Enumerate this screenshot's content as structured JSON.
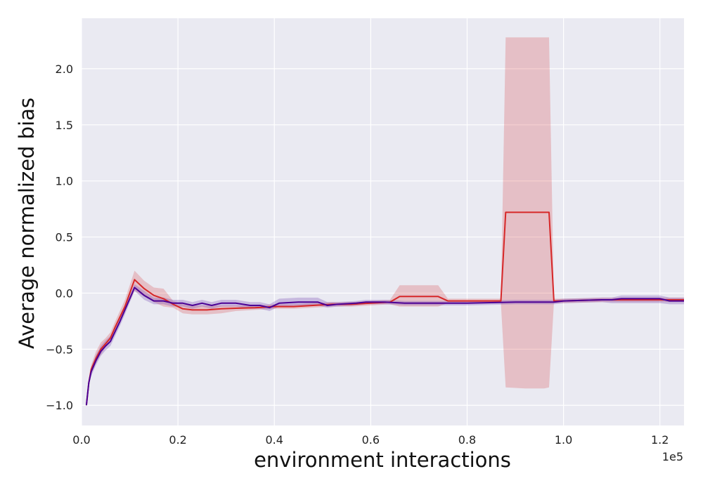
{
  "chart_data": {
    "type": "line",
    "title": "",
    "xlabel": "environment interactions",
    "ylabel": "Average normalized bias",
    "x_offset_label": "1e5",
    "xlim": [
      0,
      1.25
    ],
    "ylim": [
      -1.18,
      2.45
    ],
    "x_ticks": [
      0.0,
      0.2,
      0.4,
      0.6,
      0.8,
      1.0,
      1.2
    ],
    "x_tick_labels": [
      "0.0",
      "0.2",
      "0.4",
      "0.6",
      "0.8",
      "1.0",
      "1.2"
    ],
    "y_ticks": [
      -1.0,
      -0.5,
      0.0,
      0.5,
      1.0,
      1.5,
      2.0
    ],
    "y_tick_labels": [
      "−1.0",
      "−0.5",
      "0.0",
      "0.5",
      "1.0",
      "1.5",
      "2.0"
    ],
    "grid": true,
    "legend": "none",
    "background": "#eaeaf2",
    "series": [
      {
        "color": "#d62728",
        "band_color": "#d62728",
        "band_opacity": 0.22,
        "points": [
          [
            0.01,
            -1.0,
            -1.0,
            -1.0
          ],
          [
            0.015,
            -0.8,
            -0.82,
            -0.78
          ],
          [
            0.02,
            -0.68,
            -0.72,
            -0.64
          ],
          [
            0.03,
            -0.58,
            -0.62,
            -0.52
          ],
          [
            0.04,
            -0.5,
            -0.55,
            -0.44
          ],
          [
            0.05,
            -0.45,
            -0.48,
            -0.4
          ],
          [
            0.06,
            -0.4,
            -0.44,
            -0.35
          ],
          [
            0.07,
            -0.3,
            -0.34,
            -0.25
          ],
          [
            0.09,
            -0.12,
            -0.16,
            -0.06
          ],
          [
            0.11,
            0.12,
            0.02,
            0.2
          ],
          [
            0.13,
            0.04,
            -0.03,
            0.11
          ],
          [
            0.15,
            -0.02,
            -0.08,
            0.05
          ],
          [
            0.17,
            -0.05,
            -0.12,
            0.04
          ],
          [
            0.19,
            -0.1,
            -0.13,
            -0.07
          ],
          [
            0.21,
            -0.14,
            -0.18,
            -0.1
          ],
          [
            0.23,
            -0.15,
            -0.19,
            -0.11
          ],
          [
            0.26,
            -0.15,
            -0.19,
            -0.11
          ],
          [
            0.29,
            -0.14,
            -0.18,
            -0.11
          ],
          [
            0.32,
            -0.135,
            -0.16,
            -0.11
          ],
          [
            0.36,
            -0.13,
            -0.15,
            -0.11
          ],
          [
            0.4,
            -0.12,
            -0.14,
            -0.1
          ],
          [
            0.44,
            -0.12,
            -0.14,
            -0.1
          ],
          [
            0.48,
            -0.11,
            -0.13,
            -0.09
          ],
          [
            0.52,
            -0.1,
            -0.12,
            -0.08
          ],
          [
            0.56,
            -0.1,
            -0.12,
            -0.08
          ],
          [
            0.6,
            -0.09,
            -0.11,
            -0.07
          ],
          [
            0.64,
            -0.08,
            -0.1,
            -0.06
          ],
          [
            0.66,
            -0.03,
            -0.12,
            0.07
          ],
          [
            0.7,
            -0.03,
            -0.12,
            0.07
          ],
          [
            0.74,
            -0.03,
            -0.12,
            0.07
          ],
          [
            0.76,
            -0.07,
            -0.09,
            -0.05
          ],
          [
            0.8,
            -0.07,
            -0.09,
            -0.05
          ],
          [
            0.84,
            -0.07,
            -0.09,
            -0.05
          ],
          [
            0.87,
            -0.07,
            -0.09,
            -0.05
          ],
          [
            0.88,
            0.72,
            -0.84,
            2.28
          ],
          [
            0.92,
            0.72,
            -0.85,
            2.28
          ],
          [
            0.96,
            0.72,
            -0.85,
            2.28
          ],
          [
            0.97,
            0.72,
            -0.84,
            2.28
          ],
          [
            0.98,
            -0.07,
            -0.09,
            -0.05
          ],
          [
            1.0,
            -0.07,
            -0.09,
            -0.05
          ],
          [
            1.04,
            -0.065,
            -0.085,
            -0.045
          ],
          [
            1.08,
            -0.06,
            -0.08,
            -0.04
          ],
          [
            1.12,
            -0.06,
            -0.08,
            -0.04
          ],
          [
            1.16,
            -0.06,
            -0.08,
            -0.04
          ],
          [
            1.2,
            -0.06,
            -0.08,
            -0.04
          ],
          [
            1.25,
            -0.06,
            -0.08,
            -0.04
          ]
        ]
      },
      {
        "color": "#4b0095",
        "band_color": "#7b52b8",
        "band_opacity": 0.32,
        "points": [
          [
            0.01,
            -1.0,
            -1.0,
            -1.0
          ],
          [
            0.015,
            -0.8,
            -0.82,
            -0.78
          ],
          [
            0.02,
            -0.7,
            -0.74,
            -0.66
          ],
          [
            0.03,
            -0.6,
            -0.64,
            -0.55
          ],
          [
            0.04,
            -0.52,
            -0.56,
            -0.47
          ],
          [
            0.05,
            -0.47,
            -0.51,
            -0.42
          ],
          [
            0.06,
            -0.43,
            -0.47,
            -0.38
          ],
          [
            0.08,
            -0.25,
            -0.29,
            -0.21
          ],
          [
            0.09,
            -0.15,
            -0.19,
            -0.11
          ],
          [
            0.11,
            0.05,
            0.02,
            0.08
          ],
          [
            0.13,
            -0.02,
            -0.06,
            0.02
          ],
          [
            0.15,
            -0.07,
            -0.1,
            -0.04
          ],
          [
            0.17,
            -0.07,
            -0.1,
            -0.04
          ],
          [
            0.19,
            -0.09,
            -0.12,
            -0.06
          ],
          [
            0.21,
            -0.09,
            -0.12,
            -0.06
          ],
          [
            0.23,
            -0.11,
            -0.14,
            -0.08
          ],
          [
            0.25,
            -0.09,
            -0.12,
            -0.06
          ],
          [
            0.27,
            -0.11,
            -0.14,
            -0.08
          ],
          [
            0.29,
            -0.09,
            -0.12,
            -0.06
          ],
          [
            0.32,
            -0.09,
            -0.12,
            -0.06
          ],
          [
            0.35,
            -0.11,
            -0.14,
            -0.08
          ],
          [
            0.37,
            -0.11,
            -0.14,
            -0.08
          ],
          [
            0.39,
            -0.13,
            -0.16,
            -0.1
          ],
          [
            0.41,
            -0.09,
            -0.12,
            -0.05
          ],
          [
            0.45,
            -0.08,
            -0.11,
            -0.04
          ],
          [
            0.49,
            -0.08,
            -0.11,
            -0.04
          ],
          [
            0.51,
            -0.11,
            -0.13,
            -0.08
          ],
          [
            0.53,
            -0.1,
            -0.12,
            -0.08
          ],
          [
            0.57,
            -0.09,
            -0.11,
            -0.07
          ],
          [
            0.59,
            -0.08,
            -0.1,
            -0.06
          ],
          [
            0.63,
            -0.08,
            -0.1,
            -0.06
          ],
          [
            0.67,
            -0.09,
            -0.11,
            -0.07
          ],
          [
            0.69,
            -0.09,
            -0.11,
            -0.07
          ],
          [
            0.75,
            -0.09,
            -0.11,
            -0.07
          ],
          [
            0.8,
            -0.09,
            -0.11,
            -0.07
          ],
          [
            0.85,
            -0.085,
            -0.105,
            -0.065
          ],
          [
            0.9,
            -0.08,
            -0.1,
            -0.06
          ],
          [
            0.95,
            -0.08,
            -0.1,
            -0.06
          ],
          [
            0.98,
            -0.08,
            -0.1,
            -0.06
          ],
          [
            1.0,
            -0.07,
            -0.09,
            -0.05
          ],
          [
            1.04,
            -0.065,
            -0.085,
            -0.045
          ],
          [
            1.08,
            -0.06,
            -0.08,
            -0.04
          ],
          [
            1.1,
            -0.06,
            -0.09,
            -0.04
          ],
          [
            1.12,
            -0.05,
            -0.09,
            -0.02
          ],
          [
            1.16,
            -0.05,
            -0.09,
            -0.02
          ],
          [
            1.2,
            -0.05,
            -0.09,
            -0.02
          ],
          [
            1.22,
            -0.07,
            -0.1,
            -0.04
          ],
          [
            1.25,
            -0.07,
            -0.1,
            -0.04
          ]
        ]
      }
    ]
  }
}
